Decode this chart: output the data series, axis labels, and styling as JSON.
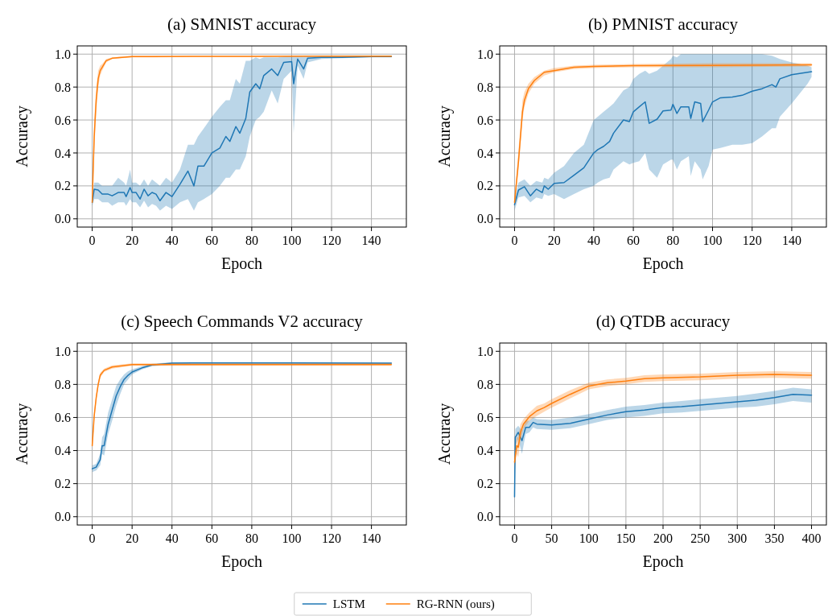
{
  "chart_data": [
    {
      "type": "line",
      "title": "(a) SMNIST accuracy",
      "xlabel": "Epoch",
      "ylabel": "Accuracy",
      "xlim": [
        -7.5,
        157.5
      ],
      "xticks": [
        0,
        20,
        40,
        60,
        80,
        100,
        120,
        140
      ],
      "ylim": [
        -0.05,
        1.05
      ],
      "yticks": [
        {
          "value": 0,
          "label": "0.0"
        },
        {
          "value": 0.2,
          "label": "0.2"
        },
        {
          "value": 0.4,
          "label": "0.4"
        },
        {
          "value": 0.6,
          "label": "0.6"
        },
        {
          "value": 0.8,
          "label": "0.8"
        },
        {
          "value": 1,
          "label": "1.0"
        }
      ],
      "grid": true,
      "series": [
        {
          "color": "#1f77b4",
          "x": [
            0,
            1,
            3,
            5,
            8,
            10,
            13,
            16,
            17,
            19,
            20,
            22,
            24,
            26,
            28,
            30,
            32,
            34,
            37,
            40,
            44,
            48,
            51,
            53,
            56,
            60,
            64,
            67,
            69,
            72,
            74,
            77,
            79,
            82,
            84,
            86,
            90,
            93,
            96,
            100,
            101,
            103,
            106,
            108,
            115,
            125,
            140,
            150
          ],
          "values": [
            0.1,
            0.18,
            0.175,
            0.15,
            0.15,
            0.14,
            0.16,
            0.16,
            0.135,
            0.19,
            0.16,
            0.16,
            0.12,
            0.18,
            0.14,
            0.16,
            0.15,
            0.11,
            0.16,
            0.135,
            0.21,
            0.29,
            0.2,
            0.32,
            0.32,
            0.4,
            0.43,
            0.5,
            0.47,
            0.56,
            0.52,
            0.61,
            0.77,
            0.82,
            0.79,
            0.87,
            0.91,
            0.87,
            0.95,
            0.955,
            0.82,
            0.97,
            0.91,
            0.975,
            0.98,
            0.98,
            0.985,
            0.985
          ],
          "lower": [
            0.08,
            0.12,
            0.12,
            0.1,
            0.1,
            0.08,
            0.1,
            0.1,
            0.08,
            0.12,
            0.1,
            0.1,
            0.07,
            0.11,
            0.07,
            0.09,
            0.08,
            0.05,
            0.08,
            0.06,
            0.1,
            0.12,
            0.05,
            0.1,
            0.12,
            0.15,
            0.2,
            0.25,
            0.25,
            0.3,
            0.3,
            0.38,
            0.5,
            0.6,
            0.62,
            0.65,
            0.78,
            0.7,
            0.85,
            0.9,
            0.52,
            0.93,
            0.85,
            0.95,
            0.97,
            0.975,
            0.98,
            0.98
          ],
          "upper": [
            0.12,
            0.22,
            0.22,
            0.2,
            0.2,
            0.2,
            0.25,
            0.22,
            0.2,
            0.3,
            0.22,
            0.22,
            0.2,
            0.24,
            0.2,
            0.24,
            0.22,
            0.2,
            0.25,
            0.22,
            0.3,
            0.45,
            0.45,
            0.5,
            0.55,
            0.62,
            0.68,
            0.72,
            0.72,
            0.85,
            0.82,
            0.96,
            0.96,
            0.98,
            0.97,
            0.98,
            0.98,
            0.98,
            0.985,
            0.99,
            0.99,
            0.99,
            0.985,
            0.99,
            0.99,
            0.99,
            0.99,
            0.99
          ]
        },
        {
          "color": "#ff7f0e",
          "x": [
            0,
            1,
            2,
            3,
            4,
            5,
            7,
            10,
            15,
            20,
            30,
            50,
            80,
            110,
            150
          ],
          "values": [
            0.1,
            0.5,
            0.72,
            0.85,
            0.9,
            0.92,
            0.96,
            0.975,
            0.98,
            0.985,
            0.985,
            0.987,
            0.987,
            0.988,
            0.988
          ],
          "lower": [
            0.08,
            0.4,
            0.65,
            0.8,
            0.87,
            0.9,
            0.95,
            0.97,
            0.975,
            0.98,
            0.98,
            0.983,
            0.983,
            0.985,
            0.985
          ],
          "upper": [
            0.12,
            0.6,
            0.8,
            0.9,
            0.93,
            0.94,
            0.97,
            0.98,
            0.985,
            0.99,
            0.99,
            0.99,
            0.99,
            0.99,
            0.99
          ]
        }
      ]
    },
    {
      "type": "line",
      "title": "(b) PMNIST accuracy",
      "xlabel": "Epoch",
      "ylabel": "Accuracy",
      "xlim": [
        -7.5,
        157.5
      ],
      "xticks": [
        0,
        20,
        40,
        60,
        80,
        100,
        120,
        140
      ],
      "ylim": [
        -0.05,
        1.05
      ],
      "yticks": [
        {
          "value": 0,
          "label": "0.0"
        },
        {
          "value": 0.2,
          "label": "0.2"
        },
        {
          "value": 0.4,
          "label": "0.4"
        },
        {
          "value": 0.6,
          "label": "0.6"
        },
        {
          "value": 0.8,
          "label": "0.8"
        },
        {
          "value": 1,
          "label": "1.0"
        }
      ],
      "grid": true,
      "series": [
        {
          "color": "#1f77b4",
          "x": [
            0,
            2,
            5,
            8,
            11,
            14,
            15,
            17,
            20,
            25,
            30,
            35,
            40,
            42,
            45,
            48,
            50,
            55,
            58,
            60,
            63,
            66,
            68,
            72,
            75,
            79,
            80,
            82,
            84,
            88,
            89,
            91,
            94,
            95,
            98,
            100,
            104,
            110,
            115,
            120,
            125,
            130,
            132,
            134,
            140,
            148,
            150
          ],
          "values": [
            0.086,
            0.175,
            0.195,
            0.14,
            0.18,
            0.16,
            0.2,
            0.18,
            0.215,
            0.22,
            0.265,
            0.31,
            0.4,
            0.42,
            0.44,
            0.47,
            0.52,
            0.6,
            0.59,
            0.65,
            0.68,
            0.71,
            0.58,
            0.605,
            0.655,
            0.66,
            0.695,
            0.64,
            0.68,
            0.68,
            0.61,
            0.71,
            0.7,
            0.59,
            0.66,
            0.71,
            0.735,
            0.74,
            0.75,
            0.775,
            0.79,
            0.815,
            0.8,
            0.85,
            0.875,
            0.89,
            0.893
          ],
          "lower": [
            0.05,
            0.13,
            0.14,
            0.1,
            0.13,
            0.12,
            0.15,
            0.14,
            0.15,
            0.12,
            0.15,
            0.18,
            0.2,
            0.22,
            0.24,
            0.25,
            0.3,
            0.35,
            0.33,
            0.34,
            0.35,
            0.4,
            0.3,
            0.25,
            0.33,
            0.36,
            0.36,
            0.3,
            0.35,
            0.38,
            0.26,
            0.35,
            0.3,
            0.24,
            0.32,
            0.42,
            0.43,
            0.45,
            0.45,
            0.46,
            0.5,
            0.55,
            0.55,
            0.62,
            0.7,
            0.82,
            0.86
          ],
          "upper": [
            0.12,
            0.22,
            0.24,
            0.2,
            0.23,
            0.22,
            0.25,
            0.24,
            0.28,
            0.32,
            0.4,
            0.45,
            0.6,
            0.62,
            0.65,
            0.68,
            0.7,
            0.78,
            0.8,
            0.85,
            0.88,
            0.9,
            0.88,
            0.9,
            0.93,
            0.97,
            0.99,
            0.98,
            1.0,
            1.0,
            1.0,
            1.0,
            1.0,
            1.0,
            1.0,
            1.0,
            1.0,
            1.0,
            1.0,
            1.0,
            1.0,
            0.99,
            0.98,
            0.97,
            0.95,
            0.93,
            0.92
          ]
        },
        {
          "color": "#ff7f0e",
          "x": [
            0,
            2,
            4,
            5,
            7,
            10,
            15,
            20,
            30,
            40,
            60,
            100,
            150
          ],
          "values": [
            0.1,
            0.35,
            0.65,
            0.72,
            0.79,
            0.84,
            0.89,
            0.9,
            0.92,
            0.925,
            0.93,
            0.932,
            0.935
          ],
          "lower": [
            0.08,
            0.3,
            0.6,
            0.68,
            0.76,
            0.82,
            0.87,
            0.89,
            0.91,
            0.915,
            0.92,
            0.92,
            0.925
          ],
          "upper": [
            0.12,
            0.42,
            0.72,
            0.77,
            0.82,
            0.86,
            0.9,
            0.915,
            0.93,
            0.935,
            0.94,
            0.945,
            0.945
          ]
        }
      ]
    },
    {
      "type": "line",
      "title": "(c) Speech Commands V2 accuracy",
      "xlabel": "Epoch",
      "ylabel": "Accuracy",
      "xlim": [
        -7.5,
        157.5
      ],
      "xticks": [
        0,
        20,
        40,
        60,
        80,
        100,
        120,
        140
      ],
      "ylim": [
        -0.05,
        1.05
      ],
      "yticks": [
        {
          "value": 0,
          "label": "0.0"
        },
        {
          "value": 0.2,
          "label": "0.2"
        },
        {
          "value": 0.4,
          "label": "0.4"
        },
        {
          "value": 0.6,
          "label": "0.6"
        },
        {
          "value": 0.8,
          "label": "0.8"
        },
        {
          "value": 1,
          "label": "1.0"
        }
      ],
      "grid": true,
      "series": [
        {
          "color": "#1f77b4",
          "x": [
            0,
            2,
            4,
            5,
            6,
            8,
            10,
            12,
            14,
            16,
            18,
            20,
            25,
            30,
            40,
            50,
            100,
            150
          ],
          "values": [
            0.29,
            0.3,
            0.345,
            0.43,
            0.43,
            0.56,
            0.645,
            0.73,
            0.785,
            0.83,
            0.855,
            0.875,
            0.9,
            0.917,
            0.928,
            0.93,
            0.93,
            0.928
          ],
          "lower": [
            0.27,
            0.28,
            0.31,
            0.38,
            0.37,
            0.5,
            0.58,
            0.67,
            0.74,
            0.8,
            0.83,
            0.86,
            0.89,
            0.91,
            0.92,
            0.925,
            0.925,
            0.923
          ],
          "upper": [
            0.31,
            0.32,
            0.38,
            0.48,
            0.5,
            0.63,
            0.71,
            0.79,
            0.83,
            0.86,
            0.88,
            0.89,
            0.91,
            0.925,
            0.935,
            0.935,
            0.935,
            0.933
          ]
        },
        {
          "color": "#ff7f0e",
          "x": [
            0,
            1,
            2,
            3,
            4,
            6,
            10,
            20,
            30,
            150
          ],
          "values": [
            0.43,
            0.61,
            0.72,
            0.8,
            0.855,
            0.885,
            0.905,
            0.92,
            0.92,
            0.92
          ],
          "lower": [
            0.41,
            0.58,
            0.7,
            0.78,
            0.84,
            0.875,
            0.895,
            0.913,
            0.913,
            0.913
          ],
          "upper": [
            0.45,
            0.64,
            0.74,
            0.82,
            0.87,
            0.895,
            0.915,
            0.927,
            0.927,
            0.927
          ]
        }
      ]
    },
    {
      "type": "line",
      "title": "(d) QTDB accuracy",
      "xlabel": "Epoch",
      "ylabel": "Accuracy",
      "xlim": [
        -20,
        420
      ],
      "xticks": [
        0,
        50,
        100,
        150,
        200,
        250,
        300,
        350,
        400
      ],
      "ylim": [
        -0.05,
        1.05
      ],
      "yticks": [
        {
          "value": 0,
          "label": "0.0"
        },
        {
          "value": 0.2,
          "label": "0.2"
        },
        {
          "value": 0.4,
          "label": "0.4"
        },
        {
          "value": 0.6,
          "label": "0.6"
        },
        {
          "value": 0.8,
          "label": "0.8"
        },
        {
          "value": 1,
          "label": "1.0"
        }
      ],
      "grid": true,
      "legend": "bottom",
      "series": [
        {
          "name": "LSTM",
          "color": "#1f77b4",
          "x": [
            0,
            1,
            5,
            10,
            15,
            20,
            25,
            30,
            50,
            75,
            100,
            125,
            150,
            175,
            200,
            225,
            250,
            275,
            300,
            325,
            350,
            375,
            400
          ],
          "values": [
            0.12,
            0.48,
            0.51,
            0.46,
            0.54,
            0.54,
            0.57,
            0.56,
            0.555,
            0.565,
            0.59,
            0.615,
            0.635,
            0.645,
            0.66,
            0.665,
            0.675,
            0.685,
            0.695,
            0.705,
            0.72,
            0.74,
            0.735
          ],
          "lower": [
            0.05,
            0.43,
            0.47,
            0.38,
            0.5,
            0.51,
            0.54,
            0.53,
            0.525,
            0.535,
            0.56,
            0.585,
            0.6,
            0.61,
            0.625,
            0.63,
            0.64,
            0.65,
            0.66,
            0.665,
            0.68,
            0.7,
            0.69
          ],
          "upper": [
            0.18,
            0.53,
            0.55,
            0.52,
            0.58,
            0.58,
            0.6,
            0.59,
            0.585,
            0.6,
            0.62,
            0.645,
            0.665,
            0.675,
            0.69,
            0.7,
            0.71,
            0.72,
            0.73,
            0.745,
            0.76,
            0.78,
            0.77
          ]
        },
        {
          "name": "RG-RNN (ours)",
          "color": "#ff7f0e",
          "x": [
            0,
            3,
            5,
            8,
            12,
            20,
            30,
            40,
            50,
            75,
            100,
            125,
            150,
            175,
            200,
            250,
            300,
            350,
            400
          ],
          "values": [
            0.33,
            0.43,
            0.42,
            0.51,
            0.56,
            0.605,
            0.64,
            0.66,
            0.685,
            0.74,
            0.79,
            0.81,
            0.82,
            0.835,
            0.84,
            0.845,
            0.855,
            0.86,
            0.855
          ],
          "lower": [
            0.3,
            0.38,
            0.36,
            0.46,
            0.53,
            0.58,
            0.61,
            0.635,
            0.66,
            0.715,
            0.77,
            0.79,
            0.8,
            0.815,
            0.82,
            0.825,
            0.835,
            0.84,
            0.835
          ],
          "upper": [
            0.36,
            0.48,
            0.48,
            0.56,
            0.59,
            0.63,
            0.67,
            0.685,
            0.71,
            0.765,
            0.81,
            0.83,
            0.84,
            0.855,
            0.86,
            0.865,
            0.875,
            0.88,
            0.875
          ]
        }
      ]
    }
  ]
}
